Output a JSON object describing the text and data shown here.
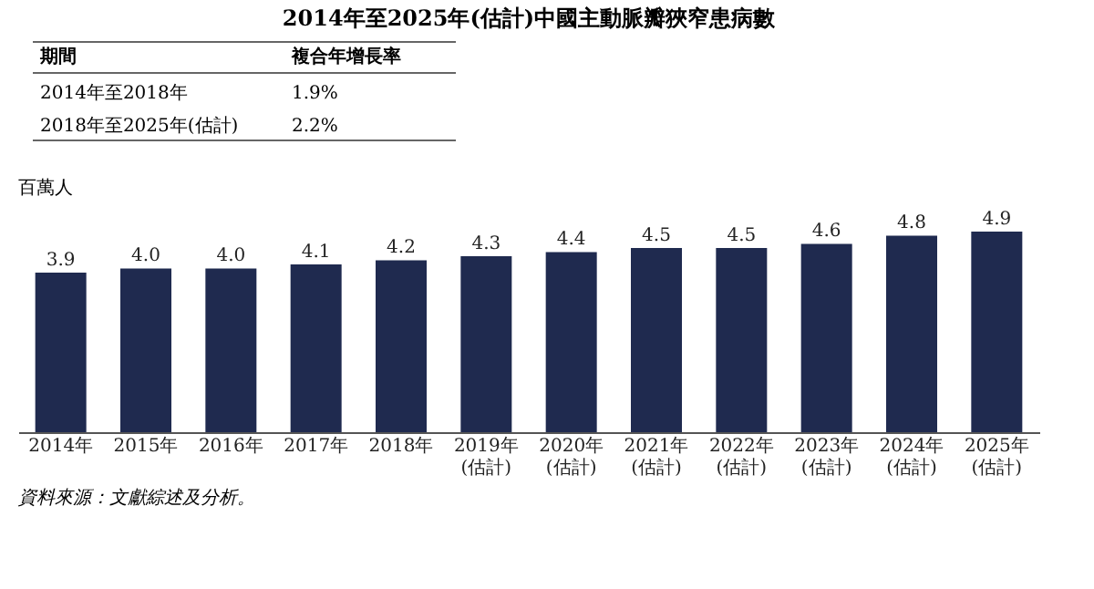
{
  "chart_data": {
    "type": "bar",
    "title": "2014年至2025年(估計)中國主動脈瓣狹窄患病數",
    "ylabel": "百萬人",
    "categories": [
      "2014年",
      "2015年",
      "2016年",
      "2017年",
      "2018年",
      "2019年\n(估計)",
      "2020年\n(估計)",
      "2021年\n(估計)",
      "2022年\n(估計)",
      "2023年\n(估計)",
      "2024年\n(估計)",
      "2025年\n(估計)"
    ],
    "values": [
      3.9,
      4.0,
      4.0,
      4.1,
      4.2,
      4.3,
      4.4,
      4.5,
      4.5,
      4.6,
      4.8,
      4.9
    ],
    "color": "#1f2a4f",
    "value_labels": [
      "3.9",
      "4.0",
      "4.0",
      "4.1",
      "4.2",
      "4.3",
      "4.4",
      "4.5",
      "4.5",
      "4.6",
      "4.8",
      "4.9"
    ],
    "grid": false,
    "annotations": [
      "期間",
      "複合年增長率",
      "2014年至2018年",
      "1.9%",
      "2018年至2025年(估計)",
      "2.2%",
      "資料來源：文獻綜述及分析。"
    ]
  }
}
